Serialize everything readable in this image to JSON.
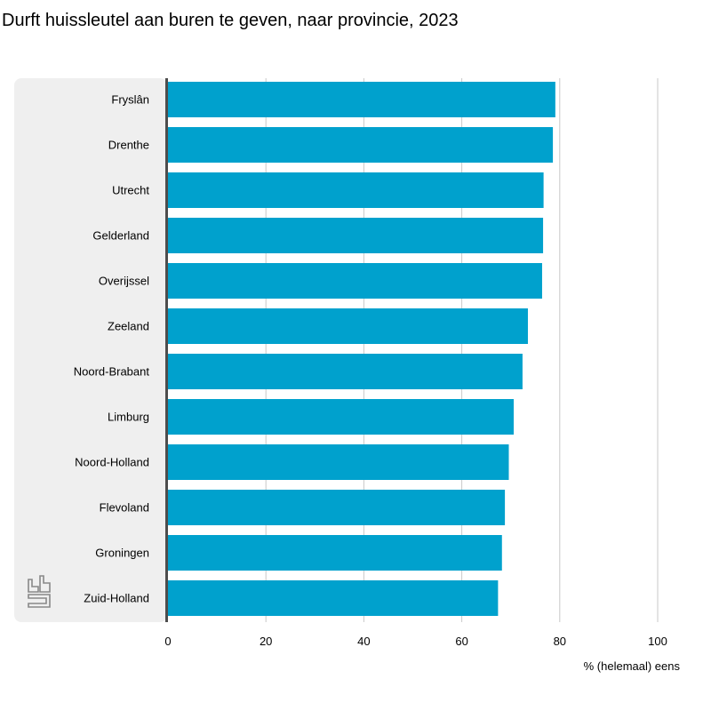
{
  "title": " Durft huissleutel aan buren te geven, naar provincie, 2023",
  "chart_data": {
    "type": "bar",
    "orientation": "horizontal",
    "title": " Durft huissleutel aan buren te geven, naar provincie, 2023",
    "xlabel": "% (helemaal) eens",
    "ylabel": "",
    "categories": [
      "Fryslân",
      "Drenthe",
      "Utrecht",
      "Gelderland",
      "Overijssel",
      "Zeeland",
      "Noord-Brabant",
      "Limburg",
      "Noord-Holland",
      "Flevoland",
      "Groningen",
      "Zuid-Holland"
    ],
    "values": [
      79.1,
      78.6,
      76.7,
      76.6,
      76.4,
      73.5,
      72.4,
      70.6,
      69.6,
      68.8,
      68.2,
      67.4
    ],
    "xlim": [
      0,
      100
    ],
    "xticks": [
      0,
      20,
      40,
      60,
      80,
      100
    ],
    "grid": true,
    "legend": "none",
    "colors": {
      "bar": "#00a1cd",
      "label_panel": "#efefef",
      "grid": "#c8c8c8",
      "axis": "#4d4d4d",
      "logo": "#888888"
    }
  },
  "logo": {
    "icon": "cbs-logo-icon"
  }
}
